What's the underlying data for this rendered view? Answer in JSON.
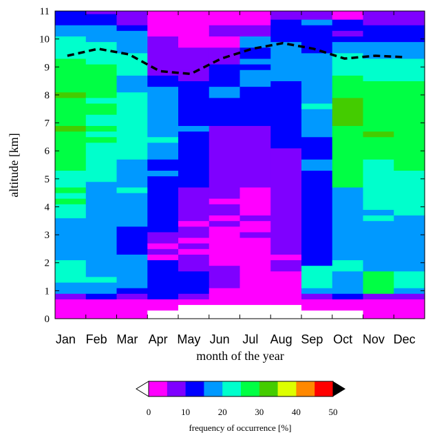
{
  "chart_data": {
    "type": "heatmap",
    "xlabel": "month of the year",
    "ylabel": "altitude [km]",
    "categories": [
      "Jan",
      "Feb",
      "Mar",
      "Apr",
      "May",
      "Jun",
      "Jul",
      "Aug",
      "Sep",
      "Oct",
      "Nov",
      "Dec"
    ],
    "y_ticks": [
      "0",
      "1",
      "2",
      "3",
      "4",
      "5",
      "6",
      "7",
      "8",
      "9",
      "10",
      "11"
    ],
    "ylim": [
      0,
      11
    ],
    "colorbar": {
      "title": "frequency of occurrence [%]",
      "ticks": [
        "0",
        "10",
        "20",
        "30",
        "40",
        "50"
      ],
      "bins": [
        0,
        5,
        10,
        15,
        20,
        25,
        30,
        35,
        40,
        45,
        50
      ],
      "colors": [
        "#ff00ff",
        "#7f00ff",
        "#0000ff",
        "#0099ff",
        "#00ffcc",
        "#00ff44",
        "#44cc00",
        "#ddff00",
        "#ff8800",
        "#ff0000"
      ],
      "under_color": "#ffffff",
      "over_color": "#000000"
    },
    "tropopause": {
      "style": "dashed",
      "color": "#000000",
      "x": [
        "Jan",
        "Feb",
        "Mar",
        "Apr",
        "May",
        "Jun",
        "Jul",
        "Aug",
        "Sep",
        "Oct",
        "Nov",
        "Dec"
      ],
      "y": [
        9.4,
        9.65,
        9.45,
        8.85,
        8.75,
        9.3,
        9.65,
        9.85,
        9.65,
        9.3,
        9.4,
        9.35
      ]
    },
    "cells": [
      [
        [
          0,
          0.3,
          "#ff00ff"
        ],
        [
          0.3,
          0.7,
          "#ff00ff"
        ],
        [
          0.7,
          0.9,
          "#7f00ff"
        ],
        [
          0.9,
          1.3,
          "#0099ff"
        ],
        [
          1.3,
          2.1,
          "#00ffcc"
        ],
        [
          2.1,
          3.6,
          "#0099ff"
        ],
        [
          3.6,
          3.9,
          "#00ffcc"
        ],
        [
          3.9,
          4.1,
          "#00ffcc"
        ],
        [
          4.1,
          4.3,
          "#00ff44"
        ],
        [
          4.3,
          4.5,
          "#00ffcc"
        ],
        [
          4.5,
          4.7,
          "#00ff44"
        ],
        [
          4.7,
          5.3,
          "#00ffcc"
        ],
        [
          5.3,
          6.7,
          "#00ff44"
        ],
        [
          6.7,
          6.9,
          "#44cc00"
        ],
        [
          6.9,
          7.9,
          "#00ff44"
        ],
        [
          7.9,
          8.1,
          "#44cc00"
        ],
        [
          8.1,
          9.3,
          "#00ff44"
        ],
        [
          9.3,
          10.1,
          "#00ffcc"
        ],
        [
          10.1,
          10.5,
          "#0099ff"
        ],
        [
          10.5,
          11,
          "#0000ff"
        ]
      ],
      [
        [
          0,
          0.3,
          "#ff00ff"
        ],
        [
          0.3,
          0.7,
          "#ff00ff"
        ],
        [
          0.7,
          0.9,
          "#0000ff"
        ],
        [
          0.9,
          1.3,
          "#0099ff"
        ],
        [
          1.3,
          1.5,
          "#00ffcc"
        ],
        [
          1.5,
          4.9,
          "#0099ff"
        ],
        [
          4.9,
          6.3,
          "#00ffcc"
        ],
        [
          6.3,
          6.5,
          "#00ff44"
        ],
        [
          6.5,
          6.7,
          "#00ffcc"
        ],
        [
          6.7,
          6.9,
          "#00ff44"
        ],
        [
          6.9,
          7.3,
          "#00ffcc"
        ],
        [
          7.3,
          7.7,
          "#00ff44"
        ],
        [
          7.7,
          7.9,
          "#00ffcc"
        ],
        [
          7.9,
          9.1,
          "#00ff44"
        ],
        [
          9.1,
          9.9,
          "#00ffcc"
        ],
        [
          9.9,
          10.5,
          "#0099ff"
        ],
        [
          10.5,
          10.9,
          "#0000ff"
        ],
        [
          10.9,
          11,
          "#7f00ff"
        ]
      ],
      [
        [
          0,
          0.3,
          "#ff00ff"
        ],
        [
          0.3,
          0.7,
          "#ff00ff"
        ],
        [
          0.7,
          0.9,
          "#7f00ff"
        ],
        [
          0.9,
          1.1,
          "#0000ff"
        ],
        [
          1.1,
          2.3,
          "#0099ff"
        ],
        [
          2.3,
          3.3,
          "#0000ff"
        ],
        [
          3.3,
          4.5,
          "#0099ff"
        ],
        [
          4.5,
          4.7,
          "#00ffcc"
        ],
        [
          4.7,
          5.7,
          "#0099ff"
        ],
        [
          5.7,
          8.1,
          "#00ffcc"
        ],
        [
          8.1,
          8.7,
          "#0099ff"
        ],
        [
          8.7,
          9.5,
          "#00ffcc"
        ],
        [
          9.5,
          10.3,
          "#0099ff"
        ],
        [
          10.3,
          10.5,
          "#0000ff"
        ],
        [
          10.5,
          11,
          "#7f00ff"
        ]
      ],
      [
        [
          0,
          0.3,
          "#ffffff"
        ],
        [
          0.3,
          0.7,
          "#ff00ff"
        ],
        [
          0.7,
          2.1,
          "#0000ff"
        ],
        [
          2.1,
          2.3,
          "#ff00ff"
        ],
        [
          2.3,
          2.5,
          "#7f00ff"
        ],
        [
          2.5,
          2.7,
          "#ff00ff"
        ],
        [
          2.7,
          3.1,
          "#7f00ff"
        ],
        [
          3.1,
          5.1,
          "#0000ff"
        ],
        [
          5.1,
          5.3,
          "#0099ff"
        ],
        [
          5.3,
          5.7,
          "#0000ff"
        ],
        [
          5.7,
          6.3,
          "#0099ff"
        ],
        [
          6.3,
          6.5,
          "#00ffcc"
        ],
        [
          6.5,
          8.3,
          "#0099ff"
        ],
        [
          8.3,
          8.7,
          "#0000ff"
        ],
        [
          8.7,
          9.1,
          "#7f00ff"
        ],
        [
          9.1,
          10.1,
          "#7f00ff"
        ],
        [
          10.1,
          11,
          "#ff00ff"
        ]
      ],
      [
        [
          0,
          0.5,
          "#ffffff"
        ],
        [
          0.5,
          0.7,
          "#ff00ff"
        ],
        [
          0.7,
          0.9,
          "#7f00ff"
        ],
        [
          0.9,
          1.7,
          "#0000ff"
        ],
        [
          1.7,
          2.3,
          "#7f00ff"
        ],
        [
          2.3,
          2.5,
          "#ff00ff"
        ],
        [
          2.5,
          2.7,
          "#7f00ff"
        ],
        [
          2.7,
          2.9,
          "#ff00ff"
        ],
        [
          2.9,
          3.3,
          "#7f00ff"
        ],
        [
          3.3,
          3.5,
          "#ff00ff"
        ],
        [
          3.5,
          4.3,
          "#7f00ff"
        ],
        [
          4.3,
          4.7,
          "#7f00ff"
        ],
        [
          4.7,
          6.7,
          "#0000ff"
        ],
        [
          6.7,
          6.9,
          "#0099ff"
        ],
        [
          6.9,
          8.5,
          "#0000ff"
        ],
        [
          8.5,
          8.9,
          "#7f00ff"
        ],
        [
          8.9,
          9.7,
          "#7f00ff"
        ],
        [
          9.7,
          11,
          "#ff00ff"
        ]
      ],
      [
        [
          0,
          0.5,
          "#ffffff"
        ],
        [
          0.5,
          1.1,
          "#ff00ff"
        ],
        [
          1.1,
          1.9,
          "#7f00ff"
        ],
        [
          1.9,
          3.3,
          "#ff00ff"
        ],
        [
          3.3,
          3.5,
          "#7f00ff"
        ],
        [
          3.5,
          3.7,
          "#ff00ff"
        ],
        [
          3.7,
          4.1,
          "#7f00ff"
        ],
        [
          4.1,
          4.3,
          "#ff00ff"
        ],
        [
          4.3,
          6.5,
          "#7f00ff"
        ],
        [
          6.5,
          6.9,
          "#7f00ff"
        ],
        [
          6.9,
          7.9,
          "#0000ff"
        ],
        [
          7.9,
          8.3,
          "#0099ff"
        ],
        [
          8.3,
          9.1,
          "#0000ff"
        ],
        [
          9.1,
          9.7,
          "#7f00ff"
        ],
        [
          9.7,
          10.1,
          "#ff00ff"
        ],
        [
          10.1,
          10.5,
          "#7f00ff"
        ],
        [
          10.5,
          11,
          "#ff00ff"
        ]
      ],
      [
        [
          0,
          0.5,
          "#ffffff"
        ],
        [
          0.5,
          2.9,
          "#ff00ff"
        ],
        [
          2.9,
          3.1,
          "#7f00ff"
        ],
        [
          3.1,
          3.5,
          "#ff00ff"
        ],
        [
          3.5,
          3.7,
          "#7f00ff"
        ],
        [
          3.7,
          4.7,
          "#ff00ff"
        ],
        [
          4.7,
          6.9,
          "#7f00ff"
        ],
        [
          6.9,
          8.3,
          "#0000ff"
        ],
        [
          8.3,
          8.9,
          "#0099ff"
        ],
        [
          8.9,
          9.1,
          "#0000ff"
        ],
        [
          9.1,
          9.3,
          "#0099ff"
        ],
        [
          9.3,
          9.7,
          "#0000ff"
        ],
        [
          9.7,
          10.1,
          "#0099ff"
        ],
        [
          10.1,
          10.5,
          "#7f00ff"
        ],
        [
          10.5,
          11,
          "#ff00ff"
        ]
      ],
      [
        [
          0,
          0.5,
          "#ffffff"
        ],
        [
          0.5,
          1.7,
          "#ff00ff"
        ],
        [
          1.7,
          2.1,
          "#7f00ff"
        ],
        [
          2.1,
          2.3,
          "#ff00ff"
        ],
        [
          2.3,
          6.1,
          "#7f00ff"
        ],
        [
          6.1,
          8.5,
          "#0000ff"
        ],
        [
          8.5,
          9.9,
          "#0099ff"
        ],
        [
          9.9,
          10.7,
          "#0000ff"
        ],
        [
          10.7,
          11,
          "#7f00ff"
        ]
      ],
      [
        [
          0,
          0.3,
          "#ffffff"
        ],
        [
          0.3,
          0.7,
          "#ff00ff"
        ],
        [
          0.7,
          0.9,
          "#7f00ff"
        ],
        [
          0.9,
          1.1,
          "#0099ff"
        ],
        [
          1.1,
          1.9,
          "#00ffcc"
        ],
        [
          1.9,
          5.3,
          "#0000ff"
        ],
        [
          5.3,
          5.7,
          "#0099ff"
        ],
        [
          5.7,
          6.5,
          "#0000ff"
        ],
        [
          6.5,
          7.5,
          "#0099ff"
        ],
        [
          7.5,
          7.7,
          "#00ffcc"
        ],
        [
          7.7,
          9.5,
          "#0099ff"
        ],
        [
          9.5,
          10.5,
          "#0000ff"
        ],
        [
          10.5,
          10.7,
          "#0099ff"
        ],
        [
          10.7,
          11,
          "#7f00ff"
        ]
      ],
      [
        [
          0,
          0.3,
          "#ffffff"
        ],
        [
          0.3,
          0.7,
          "#ff00ff"
        ],
        [
          0.7,
          0.9,
          "#0000ff"
        ],
        [
          0.9,
          1.7,
          "#0099ff"
        ],
        [
          1.7,
          2.1,
          "#00ffcc"
        ],
        [
          2.1,
          4.7,
          "#0099ff"
        ],
        [
          4.7,
          4.9,
          "#00ff44"
        ],
        [
          4.9,
          5.3,
          "#00ff44"
        ],
        [
          5.3,
          6.9,
          "#00ff44"
        ],
        [
          6.9,
          7.9,
          "#44cc00"
        ],
        [
          7.9,
          8.7,
          "#00ff44"
        ],
        [
          8.7,
          9.5,
          "#00ffcc"
        ],
        [
          9.5,
          9.9,
          "#0099ff"
        ],
        [
          9.9,
          10.1,
          "#0000ff"
        ],
        [
          10.1,
          10.3,
          "#7f00ff"
        ],
        [
          10.3,
          10.7,
          "#0000ff"
        ],
        [
          10.7,
          11,
          "#ff00ff"
        ]
      ],
      [
        [
          0,
          0.5,
          "#ff00ff"
        ],
        [
          0.5,
          0.7,
          "#ff00ff"
        ],
        [
          0.7,
          0.9,
          "#7f00ff"
        ],
        [
          0.9,
          1.7,
          "#00ff44"
        ],
        [
          1.7,
          3.5,
          "#0099ff"
        ],
        [
          3.5,
          3.7,
          "#00ffcc"
        ],
        [
          3.7,
          3.9,
          "#0099ff"
        ],
        [
          3.9,
          5.7,
          "#00ffcc"
        ],
        [
          5.7,
          6.5,
          "#00ff44"
        ],
        [
          6.5,
          6.7,
          "#44cc00"
        ],
        [
          6.7,
          8.5,
          "#00ff44"
        ],
        [
          8.5,
          9.3,
          "#00ffcc"
        ],
        [
          9.3,
          9.9,
          "#0099ff"
        ],
        [
          9.9,
          10.5,
          "#0000ff"
        ],
        [
          10.5,
          11,
          "#7f00ff"
        ]
      ],
      [
        [
          0,
          0.3,
          "#ff00ff"
        ],
        [
          0.3,
          0.7,
          "#ff00ff"
        ],
        [
          0.7,
          0.9,
          "#7f00ff"
        ],
        [
          0.9,
          1.1,
          "#0099ff"
        ],
        [
          1.1,
          1.7,
          "#00ffcc"
        ],
        [
          1.7,
          3.7,
          "#0099ff"
        ],
        [
          3.7,
          5.3,
          "#00ffcc"
        ],
        [
          5.3,
          6.9,
          "#00ff44"
        ],
        [
          6.9,
          8.5,
          "#00ff44"
        ],
        [
          8.5,
          9.3,
          "#00ffcc"
        ],
        [
          9.3,
          9.9,
          "#0099ff"
        ],
        [
          9.9,
          10.5,
          "#0000ff"
        ],
        [
          10.5,
          11,
          "#7f00ff"
        ]
      ]
    ]
  }
}
